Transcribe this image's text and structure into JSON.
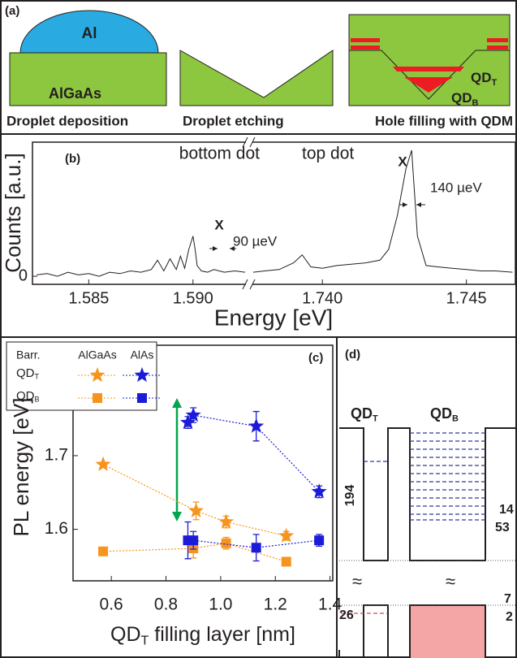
{
  "panels": {
    "a": {
      "label": "(a)",
      "metal": "Al",
      "substrate": "AlGaAs",
      "steps": [
        "Droplet deposition",
        "Droplet etching",
        "Hole filling with QDM"
      ],
      "dots": [
        {
          "text": "QD",
          "sub": "T"
        },
        {
          "text": "QD",
          "sub": "B"
        }
      ]
    },
    "d": {
      "label": "(d)",
      "dots": [
        {
          "text": "QD",
          "sub": "T"
        },
        {
          "text": "QD",
          "sub": "B"
        }
      ],
      "numbers": [
        "194",
        "14",
        "53",
        "26",
        "7",
        "2"
      ],
      "breaks": [
        "≈",
        "≈"
      ]
    }
  },
  "chart_data": [
    {
      "type": "broken-line",
      "label": "(b)",
      "xlabel": "Energy [eV]",
      "ylabel": "Counts [a.u.]",
      "color": "#231f20",
      "ylim": [
        -0.06,
        1.0
      ],
      "yticks": [
        0
      ],
      "segments": [
        {
          "xlim": [
            1.5823,
            1.5925
          ],
          "xticks": [
            1.585,
            {
              "value": 1.59,
              "label": "1.590"
            }
          ],
          "x": [
            1.5825,
            1.583,
            1.5835,
            1.584,
            1.5845,
            1.585,
            1.5855,
            1.586,
            1.5865,
            1.587,
            1.5875,
            1.588,
            1.5883,
            1.5886,
            1.5889,
            1.5892,
            1.5894,
            1.5896,
            1.5898,
            1.59,
            1.5901,
            1.5902,
            1.5904,
            1.5907,
            1.591,
            1.5915,
            1.592,
            1.5925
          ],
          "values": [
            0.01,
            0.02,
            0.0,
            0.03,
            0.01,
            0.02,
            0.0,
            0.03,
            0.02,
            0.04,
            0.03,
            0.05,
            0.12,
            0.04,
            0.13,
            0.05,
            0.15,
            0.06,
            0.2,
            0.3,
            0.2,
            0.08,
            0.04,
            0.03,
            0.05,
            0.03,
            0.04,
            0.03
          ]
        },
        {
          "xlim": [
            1.7376,
            1.7467
          ],
          "xticks": [
            {
              "value": 1.74,
              "label": "1.740"
            },
            1.745
          ],
          "x": [
            1.7376,
            1.738,
            1.7385,
            1.739,
            1.7393,
            1.7396,
            1.74,
            1.7405,
            1.741,
            1.7415,
            1.742,
            1.7423,
            1.7426,
            1.7429,
            1.7431,
            1.7433,
            1.7436,
            1.744,
            1.7445,
            1.745,
            1.7455,
            1.746,
            1.7466
          ],
          "values": [
            0.03,
            0.04,
            0.05,
            0.1,
            0.16,
            0.07,
            0.06,
            0.08,
            0.09,
            0.1,
            0.12,
            0.2,
            0.45,
            0.8,
            0.94,
            0.3,
            0.08,
            0.07,
            0.06,
            0.05,
            0.04,
            0.04,
            0.03
          ]
        }
      ],
      "annotations": [
        "bottom dot",
        "top dot",
        "X",
        "X",
        "90 µeV",
        "140 µeV"
      ]
    },
    {
      "type": "scatter",
      "label": "(c)",
      "xlabel": {
        "text": "QD",
        "sub": "T",
        "post": " filling layer [nm]"
      },
      "ylabel": "PL energy [eV]",
      "xlim": [
        0.46,
        1.41
      ],
      "ylim": [
        1.53,
        1.85
      ],
      "xticks": [
        0.6,
        0.8,
        {
          "value": 1,
          "label": "1.0"
        },
        1.2,
        1.4
      ],
      "yticks": [
        1.6,
        1.7
      ],
      "legend": {
        "title": "Barr.",
        "columns": [
          "AlGaAs",
          "AlAs"
        ],
        "rows": [
          {
            "text": "QD",
            "sub": "T"
          },
          {
            "text": "QD",
            "sub": "B"
          }
        ]
      },
      "series": [
        {
          "color": "#f7941d",
          "marker": "star",
          "x": [
            0.57,
            0.91,
            1.02,
            1.24
          ],
          "values": [
            1.688,
            1.625,
            1.61,
            1.591
          ],
          "errors": [
            null,
            0.012,
            0.008,
            0.006
          ]
        },
        {
          "color": "#1c1cd8",
          "marker": "star",
          "x": [
            0.88,
            0.9,
            1.13,
            1.36
          ],
          "values": [
            1.745,
            1.755,
            1.74,
            1.651
          ],
          "errors": [
            0.008,
            0.01,
            0.02,
            0.008
          ]
        },
        {
          "color": "#f7941d",
          "marker": "square",
          "x": [
            0.57,
            0.9,
            1.02,
            1.24
          ],
          "values": [
            1.57,
            1.574,
            1.581,
            1.556
          ],
          "errors": [
            null,
            0.013,
            0.008,
            0.004
          ]
        },
        {
          "color": "#1c1cd8",
          "marker": "square",
          "x": [
            0.88,
            0.9,
            1.13,
            1.36
          ],
          "values": [
            1.585,
            1.585,
            1.575,
            1.585
          ],
          "errors": [
            0.025,
            0.012,
            0.018,
            0.008
          ]
        }
      ]
    }
  ]
}
